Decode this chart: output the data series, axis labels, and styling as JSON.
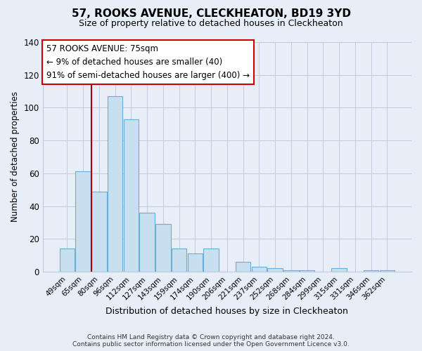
{
  "title": "57, ROOKS AVENUE, CLECKHEATON, BD19 3YD",
  "subtitle": "Size of property relative to detached houses in Cleckheaton",
  "xlabel": "Distribution of detached houses by size in Cleckheaton",
  "ylabel": "Number of detached properties",
  "bar_color": "#c8dff0",
  "bar_edge_color": "#6aaed6",
  "categories": [
    "49sqm",
    "65sqm",
    "80sqm",
    "96sqm",
    "112sqm",
    "127sqm",
    "143sqm",
    "159sqm",
    "174sqm",
    "190sqm",
    "206sqm",
    "221sqm",
    "237sqm",
    "252sqm",
    "268sqm",
    "284sqm",
    "299sqm",
    "315sqm",
    "331sqm",
    "346sqm",
    "362sqm"
  ],
  "values": [
    14,
    61,
    49,
    107,
    93,
    36,
    29,
    14,
    11,
    14,
    0,
    6,
    3,
    2,
    1,
    1,
    0,
    2,
    0,
    1,
    1
  ],
  "ylim": [
    0,
    140
  ],
  "yticks": [
    0,
    20,
    40,
    60,
    80,
    100,
    120,
    140
  ],
  "vline_x": 1.5,
  "vline_color": "#aa0000",
  "annotation_title": "57 ROOKS AVENUE: 75sqm",
  "annotation_line1": "← 9% of detached houses are smaller (40)",
  "annotation_line2": "91% of semi-detached houses are larger (400) →",
  "footer_line1": "Contains HM Land Registry data © Crown copyright and database right 2024.",
  "footer_line2": "Contains public sector information licensed under the Open Government Licence v3.0.",
  "background_color": "#e8eef8",
  "plot_background": "#e8eef8",
  "grid_color": "#c0ccdd"
}
